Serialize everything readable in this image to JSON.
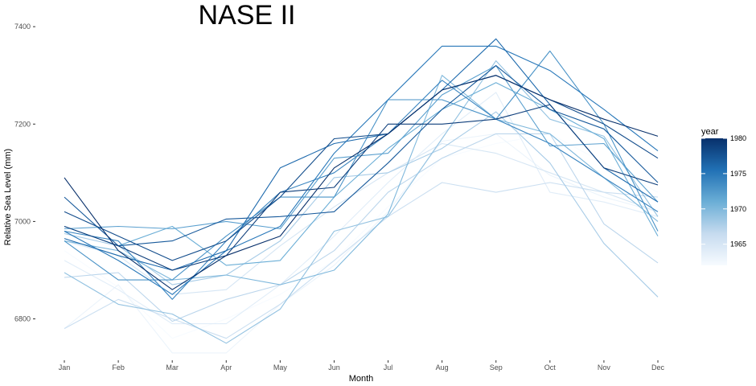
{
  "chart_data": {
    "type": "line",
    "title": "NASE II",
    "xlabel": "Month",
    "ylabel": "Relative Sea Level (mm)",
    "categories": [
      "Jan",
      "Feb",
      "Mar",
      "Apr",
      "May",
      "Jun",
      "Jul",
      "Aug",
      "Sep",
      "Oct",
      "Nov",
      "Dec"
    ],
    "y_ticks": [
      6800,
      7000,
      7200,
      7400
    ],
    "ylim": [
      6715,
      7430
    ],
    "grid": false,
    "legend": {
      "title": "year",
      "placement": "right",
      "min": 1962,
      "max": 1980,
      "ticks": [
        1965,
        1970,
        1975,
        1980
      ]
    },
    "series": [
      {
        "year": 1962,
        "values": [
          6940,
          6865,
          6760,
          6800,
          6850,
          6920,
          7030,
          7130,
          7160,
          7180,
          7120,
          7060
        ]
      },
      {
        "year": 1963,
        "values": [
          6780,
          6870,
          6730,
          6730,
          6830,
          6910,
          7020,
          7165,
          7180,
          7095,
          7050,
          7020
        ]
      },
      {
        "year": 1964,
        "values": [
          6920,
          6860,
          6790,
          6790,
          6870,
          6970,
          7080,
          7180,
          7265,
          7060,
          7040,
          7010
        ]
      },
      {
        "year": 1965,
        "values": [
          6960,
          6930,
          6850,
          6860,
          6950,
          7030,
          7100,
          7160,
          7140,
          7100,
          7060,
          7020
        ]
      },
      {
        "year": 1966,
        "values": [
          6780,
          6840,
          6800,
          6760,
          6830,
          6920,
          7010,
          7080,
          7060,
          7080,
          7060,
          7050
        ]
      },
      {
        "year": 1967,
        "values": [
          6885,
          6895,
          6795,
          6840,
          6870,
          6940,
          7060,
          7130,
          7180,
          7180,
          6995,
          6915
        ]
      },
      {
        "year": 1968,
        "values": [
          6975,
          6950,
          6870,
          6890,
          6960,
          7090,
          7100,
          7150,
          7225,
          7120,
          6955,
          6845
        ]
      },
      {
        "year": 1969,
        "values": [
          6895,
          6830,
          6810,
          6750,
          6820,
          6980,
          7010,
          7170,
          7330,
          7210,
          7175,
          7010
        ]
      },
      {
        "year": 1970,
        "values": [
          6960,
          6940,
          6880,
          6890,
          6870,
          6900,
          7015,
          7300,
          7210,
          7180,
          7090,
          7000
        ]
      },
      {
        "year": 1971,
        "values": [
          6990,
          6950,
          6990,
          6910,
          6920,
          7050,
          7150,
          7230,
          7285,
          7230,
          7170,
          6970
        ]
      },
      {
        "year": 1972,
        "values": [
          6985,
          6990,
          6985,
          7000,
          6985,
          7130,
          7140,
          7260,
          7320,
          7155,
          7160,
          7040
        ]
      },
      {
        "year": 1973,
        "values": [
          6960,
          6880,
          6880,
          6970,
          7050,
          7050,
          7250,
          7250,
          7210,
          7350,
          7200,
          6980
        ]
      },
      {
        "year": 1974,
        "values": [
          6980,
          6960,
          6840,
          6960,
          7060,
          7100,
          7180,
          7290,
          7210,
          7160,
          7090,
          7020
        ]
      },
      {
        "year": 1975,
        "values": [
          6980,
          6920,
          6850,
          6940,
          6990,
          7140,
          7250,
          7360,
          7360,
          7310,
          7230,
          7145
        ]
      },
      {
        "year": 1976,
        "values": [
          6965,
          6930,
          6900,
          6940,
          7110,
          7160,
          7180,
          7270,
          7375,
          7240,
          7110,
          7040
        ]
      },
      {
        "year": 1977,
        "values": [
          7050,
          6950,
          6960,
          7005,
          7010,
          7020,
          7120,
          7230,
          7320,
          7230,
          7190,
          7080
        ]
      },
      {
        "year": 1978,
        "values": [
          7020,
          6970,
          6920,
          6960,
          7050,
          7170,
          7180,
          7270,
          7300,
          7250,
          7200,
          7130
        ]
      },
      {
        "year": 1979,
        "values": [
          6990,
          6950,
          6900,
          6930,
          7060,
          7070,
          7200,
          7200,
          7210,
          7240,
          7110,
          7075
        ]
      },
      {
        "year": 1980,
        "values": [
          7090,
          6940,
          6860,
          6930,
          6970,
          7110,
          7180,
          7270,
          7300,
          7250,
          7210,
          7175
        ]
      }
    ]
  }
}
